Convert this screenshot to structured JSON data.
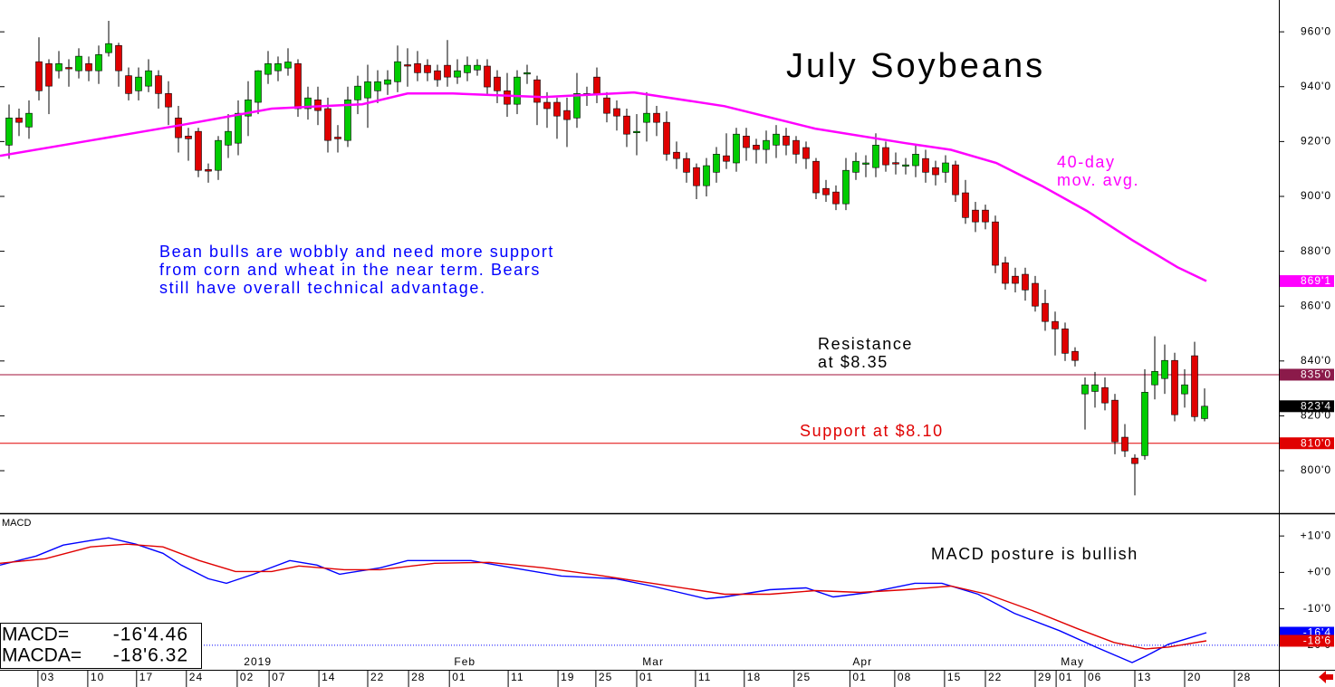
{
  "chart_data": [
    {
      "type": "candlestick",
      "title": "July Soybeans",
      "annotations": [
        {
          "lines": [
            "40-day",
            "mov. avg."
          ],
          "color": "#ff00ff"
        },
        {
          "lines": [
            "Bean bulls are wobbly and need more support",
            "from corn and wheat in the near term. Bears",
            "still have overall technical advantage."
          ],
          "color": "#0000ff"
        },
        {
          "lines": [
            "Resistance",
            "at $8.35"
          ],
          "color": "#000000"
        },
        {
          "lines": [
            "Support at $8.10"
          ],
          "color": "#e00000"
        }
      ],
      "xlim": [
        -0.909,
        127.455
      ],
      "xticks": [
        {
          "value": 2.9,
          "label": "03"
        },
        {
          "value": 7.9,
          "label": "10"
        },
        {
          "value": 12.8,
          "label": "17"
        },
        {
          "value": 17.8,
          "label": "24"
        },
        {
          "value": 22.9,
          "label": "02"
        },
        {
          "value": 26.1,
          "label": "07"
        },
        {
          "value": 31.1,
          "label": "14"
        },
        {
          "value": 36,
          "label": "22"
        },
        {
          "value": 40.1,
          "label": "28"
        },
        {
          "value": 44.2,
          "label": "01"
        },
        {
          "value": 50.1,
          "label": "11"
        },
        {
          "value": 55.1,
          "label": "19"
        },
        {
          "value": 58.9,
          "label": "25"
        },
        {
          "value": 63,
          "label": "01"
        },
        {
          "value": 68.9,
          "label": "11"
        },
        {
          "value": 73.8,
          "label": "18"
        },
        {
          "value": 78.8,
          "label": "25"
        },
        {
          "value": 84.4,
          "label": "01"
        },
        {
          "value": 88.9,
          "label": "08"
        },
        {
          "value": 93.9,
          "label": "15"
        },
        {
          "value": 98,
          "label": "22"
        },
        {
          "value": 103,
          "label": "29"
        },
        {
          "value": 105.1,
          "label": "01"
        },
        {
          "value": 108,
          "label": "06"
        },
        {
          "value": 113,
          "label": "13"
        },
        {
          "value": 118,
          "label": "20"
        },
        {
          "value": 123,
          "label": "28"
        }
      ],
      "month_labels": [
        {
          "value": 23.3,
          "label": "2019"
        },
        {
          "value": 44.4,
          "label": "Feb"
        },
        {
          "value": 63.3,
          "label": "Mar"
        },
        {
          "value": 84.4,
          "label": "Apr"
        },
        {
          "value": 105.3,
          "label": "May"
        }
      ],
      "ylim": [
        784.5,
        971.6
      ],
      "yticks": [
        {
          "value": 960,
          "label": "960'0"
        },
        {
          "value": 940,
          "label": "940'0"
        },
        {
          "value": 920,
          "label": "920'0"
        },
        {
          "value": 900,
          "label": "900'0"
        },
        {
          "value": 880,
          "label": "880'0"
        },
        {
          "value": 860,
          "label": "860'0"
        },
        {
          "value": 840,
          "label": "840'0"
        },
        {
          "value": 820,
          "label": "820'0"
        },
        {
          "value": 800,
          "label": "800'0"
        }
      ],
      "candles": {
        "up_color": "#00cc00",
        "down_color": "#e00000",
        "open": [
          918.7,
          928.6,
          925.3,
          949.1,
          948.4,
          945.8,
          947,
          945.8,
          948.4,
          945.8,
          952.4,
          955,
          944,
          938.5,
          940.2,
          944,
          937.5,
          928.6,
          922,
          923.7,
          909.8,
          909.5,
          918.7,
          919.4,
          929.3,
          934.3,
          944.5,
          945.8,
          946.8,
          948.4,
          932,
          935.2,
          932,
          921.6,
          920.4,
          935.2,
          935.9,
          938.5,
          940.9,
          941.8,
          948,
          948.4,
          947.8,
          945.8,
          947.8,
          943.5,
          945.1,
          946.1,
          947.5,
          943.5,
          938.5,
          933.6,
          944.6,
          942.5,
          934.3,
          934.3,
          931.3,
          928.6,
          937.2,
          943.5,
          935.9,
          932,
          929.3,
          923.4,
          927,
          930.3,
          927,
          916.1,
          913.8,
          910.5,
          903.9,
          908.8,
          914.8,
          912.2,
          922,
          918.7,
          917.1,
          918.7,
          922,
          920.4,
          917.8,
          912.8,
          902.9,
          901.6,
          897.3,
          908.8,
          911.9,
          910.5,
          917.8,
          912.3,
          911.2,
          911.2,
          913.8,
          910.5,
          908.8,
          911.5,
          901.3,
          895,
          895,
          890.7,
          875.8,
          870.9,
          871.6,
          868.3,
          861,
          854.4,
          851.7,
          843.5,
          828,
          828.9,
          830.3,
          825.7,
          812.2,
          804.6,
          805.5,
          831.3,
          833.6,
          840.2,
          828,
          841.9,
          819
        ],
        "high": [
          933.5,
          932,
          935,
          958,
          950,
          953,
          950,
          954,
          951,
          955,
          964,
          956,
          947,
          947,
          950,
          946,
          942,
          933,
          925,
          925,
          912,
          922,
          930,
          935,
          942,
          946,
          953,
          951,
          954,
          950,
          940,
          940,
          936,
          926,
          940,
          944,
          948,
          946,
          946,
          955,
          954,
          953,
          950,
          948,
          957,
          950,
          951,
          950,
          950,
          946,
          945,
          946,
          948,
          944,
          938,
          936,
          936,
          945,
          940,
          947,
          938,
          935,
          932,
          930,
          938,
          933,
          931,
          920,
          916,
          912,
          914,
          918,
          923,
          925,
          925,
          921,
          924,
          926,
          925,
          922,
          920,
          914,
          906,
          904,
          914,
          916,
          915,
          923,
          920,
          916,
          914,
          919,
          917,
          913,
          915,
          913,
          906,
          898,
          897,
          893,
          878,
          874,
          874,
          871,
          866,
          858,
          854,
          845,
          834,
          836,
          834,
          828,
          817,
          806,
          837,
          849,
          846,
          843,
          837,
          847,
          830
        ],
        "low": [
          913.7,
          922,
          921,
          935,
          930,
          943,
          940,
          943,
          942,
          941,
          951,
          940,
          935,
          935,
          938,
          932,
          926,
          916,
          913,
          907,
          905,
          906,
          914,
          915,
          922,
          930,
          941,
          942,
          944,
          929,
          928,
          926,
          916,
          916,
          918,
          930,
          925,
          934,
          937,
          938,
          940,
          942,
          942,
          940,
          940,
          941,
          942,
          944,
          937,
          934,
          929,
          930,
          941,
          926,
          925,
          921,
          918,
          925,
          933,
          934,
          927,
          924,
          918,
          915,
          920,
          922,
          913,
          910,
          905,
          899,
          900,
          905,
          910,
          909,
          913,
          912,
          912,
          914,
          915,
          912,
          910,
          899,
          898,
          895,
          895,
          906,
          907,
          907,
          909,
          908,
          908,
          907,
          905,
          904,
          905,
          898,
          890,
          887,
          888,
          872,
          866,
          865,
          862,
          858,
          851,
          842,
          840,
          838,
          815,
          823,
          822,
          806,
          805,
          791,
          804,
          826,
          828,
          818,
          823,
          818,
          818
        ],
        "close": [
          928.6,
          927,
          930.3,
          938.5,
          940.2,
          948.4,
          946.5,
          951.1,
          945.8,
          951.7,
          955.7,
          945.8,
          937.5,
          943.5,
          945.8,
          937.5,
          932.6,
          921.4,
          921,
          909.5,
          909.2,
          920.4,
          923.7,
          930.3,
          935.2,
          945.8,
          948.4,
          948.4,
          949,
          932,
          935.9,
          931.3,
          920.4,
          921,
          935.2,
          940.2,
          941.8,
          941.8,
          942.5,
          949.1,
          947.5,
          945.1,
          945.1,
          942.5,
          943.5,
          945.8,
          947.8,
          947.8,
          939.9,
          938.5,
          933.6,
          943.5,
          945.1,
          934.3,
          932,
          929.3,
          928,
          937.5,
          937.5,
          937.5,
          930.3,
          929.3,
          922.7,
          923.7,
          930.3,
          927,
          915.4,
          913.8,
          908.8,
          903.9,
          911.2,
          915.4,
          912.8,
          922.7,
          917.8,
          917.1,
          920.4,
          922.7,
          918.7,
          915.4,
          913.8,
          901.3,
          900.6,
          897.3,
          909.5,
          912.8,
          912.2,
          918.7,
          911.5,
          912,
          911.5,
          915.4,
          908.8,
          907.9,
          912.2,
          900.6,
          892.3,
          890.7,
          890.7,
          874.9,
          868.3,
          868.3,
          865.9,
          860,
          854.4,
          851.7,
          842.8,
          840.2,
          831.3,
          831.3,
          824.7,
          810.5,
          807.2,
          802.6,
          828.6,
          836.2,
          840.2,
          820.4,
          831.3,
          819.7,
          823.5
        ]
      },
      "series": [
        {
          "color": "#ff00ff",
          "x": [
            -0.91,
            8.18,
            17.27,
            26.36,
            35.45,
            40,
            44.55,
            53.64,
            62.73,
            71.82,
            80.91,
            90,
            94.55,
            99.09,
            103.64,
            108.18,
            112.73,
            117.27,
            120.18
          ],
          "values": [
            914.8,
            920.4,
            926,
            932,
            933.6,
            937.5,
            937.5,
            936.2,
            937.9,
            932.9,
            924.7,
            919.4,
            917,
            912.2,
            903.9,
            894.7,
            884.1,
            874.2,
            869.125
          ]
        }
      ],
      "hlines": [
        {
          "value": 835,
          "color": "#a0103a"
        },
        {
          "value": 810,
          "color": "#e00000"
        }
      ],
      "value_tags": [
        {
          "value": 869.125,
          "label": "869'1",
          "color": "#ff00ff"
        },
        {
          "value": 835,
          "label": "835'0",
          "color": "#8b1a4a"
        },
        {
          "value": 823.5,
          "label": "823'4",
          "color": "#000000"
        },
        {
          "value": 810,
          "label": "810'0",
          "color": "#e00000"
        }
      ]
    },
    {
      "type": "line",
      "title": "MACD",
      "annotation": "MACD posture is bullish",
      "ylim": [
        -26.75,
        16.25
      ],
      "yticks": [
        {
          "value": 10,
          "label": "+10'0"
        },
        {
          "value": 0,
          "label": "+0'0"
        },
        {
          "value": -10,
          "label": "-10'0"
        },
        {
          "value": -20,
          "label": "-20'0"
        }
      ],
      "ref_line": {
        "value": -20,
        "color": "#0000ff"
      },
      "series": [
        {
          "name": "MACD",
          "color": "#0000ff",
          "x": [
            -0.91,
            2.73,
            5.45,
            8.18,
            10,
            12.73,
            15.45,
            17.27,
            20,
            21.82,
            24.55,
            28.18,
            30.91,
            33.18,
            37.27,
            40,
            46.36,
            50,
            55.45,
            60.91,
            64.55,
            70,
            71.82,
            76.36,
            80,
            82.73,
            86.36,
            90.91,
            93.64,
            97.27,
            100.91,
            105.45,
            109.09,
            112.73,
            114.09,
            116.36,
            118.18,
            120.18
          ],
          "values": [
            2,
            4.5,
            7.5,
            8.75,
            9.5,
            7.75,
            5.25,
            2,
            -1.75,
            -3,
            -0.5,
            3.25,
            2,
            -0.5,
            1.25,
            3.25,
            3.25,
            1.5,
            -1,
            -1.75,
            -3.75,
            -7.25,
            -6.75,
            -4.75,
            -4.25,
            -6.75,
            -5.5,
            -3,
            -3,
            -6,
            -11.25,
            -16,
            -20.5,
            -24.75,
            -23,
            -19.75,
            -18.25,
            -16.56
          ]
        },
        {
          "name": "MACDA",
          "color": "#e00000",
          "x": [
            -0.91,
            3.64,
            8.18,
            11.82,
            15.45,
            19.09,
            22.73,
            26.36,
            29.09,
            33.64,
            37.27,
            42.73,
            48.18,
            53.64,
            59.09,
            64.55,
            71.82,
            76.36,
            80.91,
            85.45,
            90,
            94.55,
            98.18,
            102.73,
            107.27,
            110.91,
            114.09,
            116.36,
            120.18
          ],
          "values": [
            2.5,
            3.75,
            7,
            7.75,
            7,
            3.25,
            0.25,
            0.25,
            1.75,
            0.75,
            0.75,
            2.5,
            2.75,
            1.25,
            -0.75,
            -3,
            -6,
            -6,
            -5,
            -5.5,
            -4.75,
            -3.75,
            -6,
            -10.5,
            -15.5,
            -19.25,
            -21,
            -20.5,
            -18.79
          ]
        }
      ],
      "readout": [
        {
          "label": "MACD=",
          "value": "-16'4.46"
        },
        {
          "label": "MACDA=",
          "value": "-18'6.32"
        }
      ],
      "value_tags": [
        {
          "value": -16.56,
          "label": "-16'4",
          "color": "#0000ff"
        },
        {
          "value": -18.79,
          "label": "-18'6",
          "color": "#e00000"
        }
      ]
    }
  ]
}
